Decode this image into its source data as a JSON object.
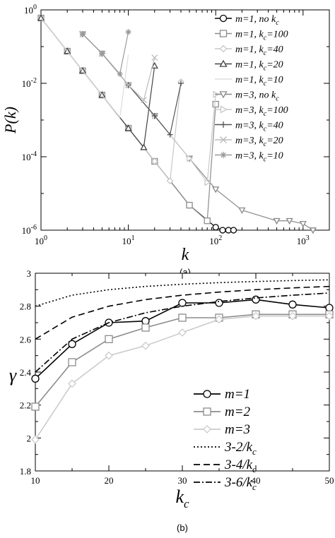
{
  "chart_data": [
    {
      "panel_label": "(a)",
      "type": "scatter",
      "xlabel": "k",
      "ylabel": "P(k)",
      "x_scale": "log",
      "y_scale": "log",
      "xlim": [
        1,
        2000
      ],
      "ylim": [
        1e-06,
        1
      ],
      "x_ticks": [
        1,
        10,
        100,
        1000
      ],
      "y_ticks": [
        1e-06,
        0.0001,
        0.01,
        1
      ],
      "x_tick_labels": [
        {
          "base": "10",
          "exp": "0"
        },
        {
          "base": "10",
          "exp": "1"
        },
        {
          "base": "10",
          "exp": "2"
        },
        {
          "base": "10",
          "exp": "3"
        }
      ],
      "y_tick_labels": [
        {
          "base": "10",
          "exp": "-6"
        },
        {
          "base": "10",
          "exp": "-4"
        },
        {
          "base": "10",
          "exp": "-2"
        },
        {
          "base": "10",
          "exp": "0"
        }
      ],
      "legend_position": "top-right",
      "series": [
        {
          "label": "m=1, no k",
          "sub": "c",
          "marker": "circle",
          "color": "#000000",
          "x": [
            1,
            2,
            3,
            5,
            10,
            20,
            50,
            100,
            120,
            140,
            160
          ],
          "y": [
            0.6,
            0.075,
            0.022,
            0.0048,
            0.0006,
            7.5e-05,
            4.8e-06,
            1.2e-06,
            1e-06,
            1e-06,
            1e-06
          ]
        },
        {
          "label": "m=1, k",
          "sub": "c",
          "suffix": "=100",
          "marker": "square",
          "color": "#8c8c8c",
          "x": [
            1,
            2,
            3,
            5,
            10,
            20,
            50,
            80,
            100
          ],
          "y": [
            0.6,
            0.075,
            0.022,
            0.0048,
            0.0006,
            7.5e-05,
            4.8e-06,
            1.8e-06,
            0.0027
          ]
        },
        {
          "label": "m=1, k",
          "sub": "c",
          "suffix": "=40",
          "marker": "diamond",
          "color": "#c8c8c8",
          "x": [
            1,
            2,
            3,
            5,
            10,
            20,
            30,
            40
          ],
          "y": [
            0.6,
            0.075,
            0.022,
            0.0048,
            0.0006,
            7.5e-05,
            2.2e-05,
            0.011
          ]
        },
        {
          "label": "m=1, k",
          "sub": "c",
          "suffix": "=20",
          "marker": "triangle",
          "color": "#444444",
          "x": [
            1,
            2,
            3,
            5,
            10,
            15,
            20
          ],
          "y": [
            0.6,
            0.075,
            0.022,
            0.0048,
            0.0006,
            0.00018,
            0.03
          ]
        },
        {
          "label": "m=1, k",
          "sub": "c",
          "suffix": "=10",
          "marker": "none",
          "color": "#dddddd",
          "x": [
            1,
            2,
            3,
            5,
            8,
            10
          ],
          "y": [
            0.6,
            0.075,
            0.022,
            0.0048,
            0.0012,
            0.06
          ]
        },
        {
          "label": "m=3, no k",
          "sub": "c",
          "marker": "triangle-down",
          "color": "#888888",
          "x": [
            3,
            5,
            10,
            20,
            50,
            100,
            200,
            500,
            700,
            1000,
            1300
          ],
          "y": [
            0.22,
            0.065,
            0.009,
            0.0013,
            9e-05,
            1.3e-05,
            3.5e-06,
            1.8e-06,
            1.8e-06,
            1.5e-06,
            1e-06
          ]
        },
        {
          "label": "m=3, k",
          "sub": "c",
          "suffix": "=100",
          "marker": "triangle-right",
          "color": "#c8c8c8",
          "x": [
            3,
            5,
            10,
            20,
            50,
            80,
            100
          ],
          "y": [
            0.22,
            0.065,
            0.009,
            0.0013,
            9e-05,
            2e-05,
            0.005
          ]
        },
        {
          "label": "m=3, k",
          "sub": "c",
          "suffix": "=40",
          "marker": "plus",
          "color": "#555555",
          "x": [
            3,
            5,
            10,
            20,
            30,
            40
          ],
          "y": [
            0.22,
            0.065,
            0.009,
            0.0013,
            0.0004,
            0.01
          ]
        },
        {
          "label": "m=3, k",
          "sub": "c",
          "suffix": "=20",
          "marker": "cross",
          "color": "#bbbbbb",
          "x": [
            3,
            5,
            10,
            15,
            20
          ],
          "y": [
            0.22,
            0.065,
            0.009,
            0.0035,
            0.05
          ]
        },
        {
          "label": "m=3, k",
          "sub": "c",
          "suffix": "=10",
          "marker": "star",
          "color": "#999999",
          "x": [
            3,
            5,
            8,
            10
          ],
          "y": [
            0.22,
            0.065,
            0.018,
            0.25
          ]
        }
      ]
    },
    {
      "panel_label": "(b)",
      "type": "line",
      "xlabel": "k",
      "xlabel_sub": "c",
      "ylabel": "γ",
      "xlim": [
        10,
        50
      ],
      "ylim": [
        1.8,
        3.0
      ],
      "x_ticks": [
        10,
        20,
        30,
        40,
        50
      ],
      "y_ticks": [
        1.8,
        2.0,
        2.2,
        2.4,
        2.6,
        2.8,
        3.0
      ],
      "x_tick_labels": [
        "10",
        "20",
        "30",
        "40",
        "50"
      ],
      "y_tick_labels": [
        "1.8",
        "2",
        "2.2",
        "2.4",
        "2.6",
        "2.8",
        "3"
      ],
      "legend_position": "center-right",
      "series": [
        {
          "label": "m=1",
          "marker": "circle",
          "color": "#000000",
          "dash": "",
          "x": [
            10,
            15,
            20,
            25,
            30,
            35,
            40,
            45,
            50
          ],
          "y": [
            2.36,
            2.57,
            2.7,
            2.71,
            2.82,
            2.82,
            2.84,
            2.81,
            2.79
          ]
        },
        {
          "label": "m=2",
          "marker": "square",
          "color": "#8c8c8c",
          "dash": "",
          "x": [
            10,
            15,
            20,
            25,
            30,
            35,
            40,
            45,
            50
          ],
          "y": [
            2.19,
            2.46,
            2.6,
            2.67,
            2.73,
            2.73,
            2.75,
            2.75,
            2.75
          ]
        },
        {
          "label": "m=3",
          "marker": "diamond",
          "color": "#cccccc",
          "dash": "",
          "x": [
            10,
            15,
            20,
            25,
            30,
            35,
            40,
            45,
            50
          ],
          "y": [
            1.99,
            2.33,
            2.5,
            2.56,
            2.64,
            2.72,
            2.74,
            2.74,
            2.74
          ]
        },
        {
          "label": "3-2/k",
          "sub": "c",
          "marker": "none",
          "color": "#000000",
          "dash": "2,3",
          "formula": "3-2/k",
          "x": [
            10,
            15,
            20,
            25,
            30,
            35,
            40,
            45,
            50
          ],
          "y": [
            2.8,
            2.8667,
            2.9,
            2.92,
            2.9333,
            2.9429,
            2.95,
            2.9556,
            2.96
          ]
        },
        {
          "label": "3-4/k",
          "sub": "c",
          "marker": "none",
          "color": "#000000",
          "dash": "9,5",
          "formula": "3-4/k",
          "x": [
            10,
            15,
            20,
            25,
            30,
            35,
            40,
            45,
            50
          ],
          "y": [
            2.6,
            2.7333,
            2.8,
            2.84,
            2.8667,
            2.8857,
            2.9,
            2.9111,
            2.92
          ]
        },
        {
          "label": "3-6/k",
          "sub": "c",
          "marker": "none",
          "color": "#000000",
          "dash": "9,3,2,3",
          "formula": "3-6/k",
          "x": [
            10,
            15,
            20,
            25,
            30,
            35,
            40,
            45,
            50
          ],
          "y": [
            2.4,
            2.6,
            2.7,
            2.76,
            2.8,
            2.8286,
            2.85,
            2.8667,
            2.88
          ]
        }
      ]
    }
  ]
}
